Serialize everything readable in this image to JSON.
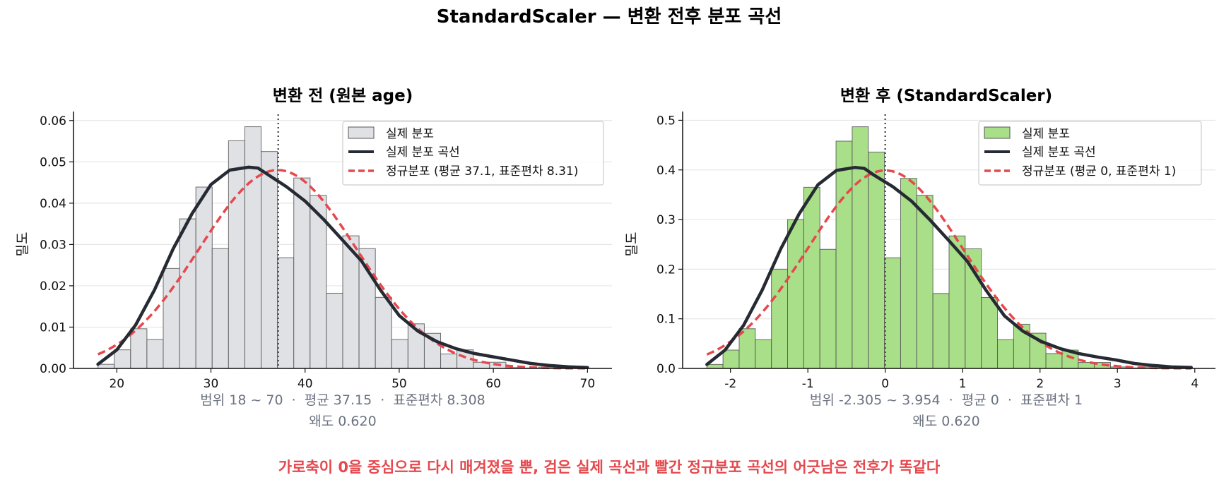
{
  "figure": {
    "title": "StandardScaler — 변환 전후 분포 곡선",
    "footnote": "가로축이 0을 중심으로 다시 매겨졌을 뿐, 검은 실제 곡선과 빨간 정규분포 곡선의 어긋남은 전후가 똑같다"
  },
  "colors": {
    "before_fill": "#dfe1e5",
    "after_fill": "#a8df88",
    "bar_edge": "#555555",
    "kde": "#262a33",
    "normal": "#e5484d",
    "stats_text": "#6b7280",
    "grid": "#e6e6e6"
  },
  "chart_data": [
    {
      "type": "bar",
      "title": "변환 전 (원본 age)",
      "ylabel": "밀도",
      "xlabel": "",
      "xlim": [
        15.4,
        72.6
      ],
      "ylim": [
        0,
        0.0615
      ],
      "xticks": [
        20,
        30,
        40,
        50,
        60,
        70
      ],
      "xtick_labels": [
        "20",
        "30",
        "40",
        "50",
        "60",
        "70"
      ],
      "yticks": [
        0,
        0.01,
        0.02,
        0.03,
        0.04,
        0.05,
        0.06
      ],
      "ytick_labels": [
        "0.00",
        "0.01",
        "0.02",
        "0.03",
        "0.04",
        "0.05",
        "0.06"
      ],
      "grid": "horizontal",
      "bins": {
        "start": 18,
        "width": 1.7333,
        "values": [
          0.001,
          0.0045,
          0.0096,
          0.007,
          0.0242,
          0.0362,
          0.0439,
          0.029,
          0.0551,
          0.0585,
          0.0525,
          0.0268,
          0.0461,
          0.0419,
          0.0182,
          0.0321,
          0.029,
          0.0172,
          0.007,
          0.0108,
          0.0085,
          0.0035,
          0.0045,
          0.0015,
          0.0015,
          0.0002,
          0.0001,
          0.0003,
          0.0002,
          0.0001
        ]
      },
      "mean_line": 37.15,
      "kde": {
        "x": [
          18,
          20,
          22,
          24,
          26,
          28,
          30,
          32,
          34,
          35,
          36,
          38,
          40,
          42,
          44,
          46,
          48,
          50,
          52,
          54,
          56,
          58,
          60,
          62,
          64,
          66,
          68,
          70
        ],
        "y": [
          0.001,
          0.0045,
          0.0105,
          0.019,
          0.029,
          0.0375,
          0.0445,
          0.048,
          0.0487,
          0.0485,
          0.047,
          0.044,
          0.0405,
          0.036,
          0.031,
          0.026,
          0.019,
          0.0128,
          0.009,
          0.0065,
          0.0048,
          0.0036,
          0.0028,
          0.002,
          0.0012,
          0.0007,
          0.0004,
          0.0002
        ]
      },
      "normal": {
        "mean": 37.1,
        "sd": 8.31,
        "xmin": 18,
        "xmax": 70
      },
      "legend": {
        "position": "top-right",
        "items": [
          "실제 분포",
          "실제 분포 곡선",
          "정규분포 (평균 37.1, 표준편차 8.31)"
        ]
      },
      "stats": [
        "범위 18 ~ 70  ·  평균 37.15  ·  표준편차 8.308",
        "왜도 0.620"
      ]
    },
    {
      "type": "bar",
      "title": "변환 후 (StandardScaler)",
      "ylabel": "밀도",
      "xlabel": "",
      "xlim": [
        -2.618,
        4.267
      ],
      "ylim": [
        0,
        0.512
      ],
      "xticks": [
        -2,
        -1,
        0,
        1,
        2,
        3,
        4
      ],
      "xtick_labels": [
        "-2",
        "-1",
        "0",
        "1",
        "2",
        "3",
        "4"
      ],
      "yticks": [
        0,
        0.1,
        0.2,
        0.3,
        0.4,
        0.5
      ],
      "ytick_labels": [
        "0.0",
        "0.1",
        "0.2",
        "0.3",
        "0.4",
        "0.5"
      ],
      "grid": "horizontal",
      "bins": {
        "start": -2.305,
        "width": 0.20863,
        "values": [
          0.008,
          0.037,
          0.08,
          0.058,
          0.2,
          0.3,
          0.365,
          0.24,
          0.458,
          0.487,
          0.436,
          0.223,
          0.383,
          0.349,
          0.151,
          0.267,
          0.241,
          0.143,
          0.058,
          0.089,
          0.071,
          0.03,
          0.037,
          0.012,
          0.012,
          0.003,
          0.001,
          0.003,
          0.002,
          0.001
        ]
      },
      "mean_line": 0,
      "kde": {
        "x": [
          -2.305,
          -2.07,
          -1.83,
          -1.59,
          -1.35,
          -1.11,
          -0.87,
          -0.63,
          -0.39,
          -0.27,
          -0.15,
          0.1,
          0.34,
          0.58,
          0.82,
          1.06,
          1.3,
          1.54,
          1.78,
          2.02,
          2.26,
          2.5,
          2.74,
          2.98,
          3.22,
          3.46,
          3.7,
          3.954
        ],
        "y": [
          0.008,
          0.037,
          0.087,
          0.158,
          0.241,
          0.312,
          0.37,
          0.399,
          0.405,
          0.403,
          0.39,
          0.366,
          0.337,
          0.299,
          0.258,
          0.216,
          0.158,
          0.106,
          0.075,
          0.054,
          0.04,
          0.03,
          0.023,
          0.017,
          0.01,
          0.006,
          0.003,
          0.002
        ]
      },
      "normal": {
        "mean": 0,
        "sd": 1,
        "xmin": -2.305,
        "xmax": 3.954
      },
      "legend": {
        "position": "top-right",
        "items": [
          "실제 분포",
          "실제 분포 곡선",
          "정규분포 (평균 0, 표준편차 1)"
        ]
      },
      "stats": [
        "범위 -2.305 ~ 3.954  ·  평균 0  ·  표준편차 1",
        "왜도 0.620"
      ]
    }
  ]
}
